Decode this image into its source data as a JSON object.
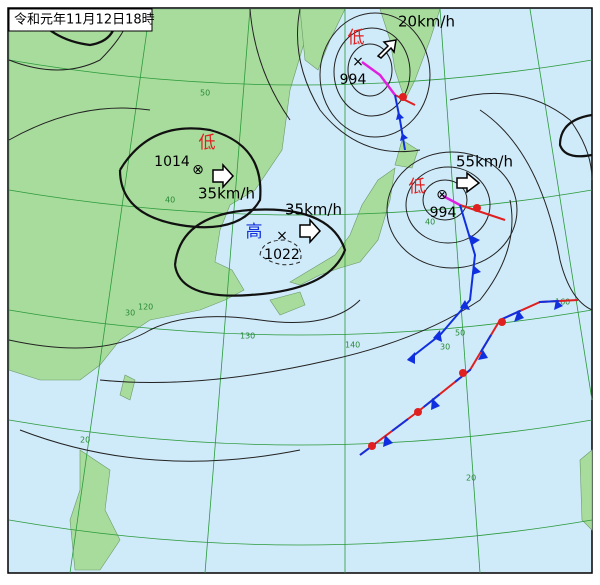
{
  "title": "令和元年11月12日18時",
  "systems": [
    {
      "kind": "低",
      "pressure": 994,
      "speed": "20km/h"
    },
    {
      "kind": "低",
      "pressure": 1014,
      "speed": "35km/h"
    },
    {
      "kind": "高",
      "pressure": 1022,
      "speed": "35km/h"
    },
    {
      "kind": "低",
      "pressure": 994,
      "speed": "55km/h"
    }
  ],
  "grid_labels": [
    "50",
    "40",
    "30",
    "20",
    "140",
    "130",
    "120",
    "160",
    "20",
    "30",
    "40",
    "50"
  ]
}
